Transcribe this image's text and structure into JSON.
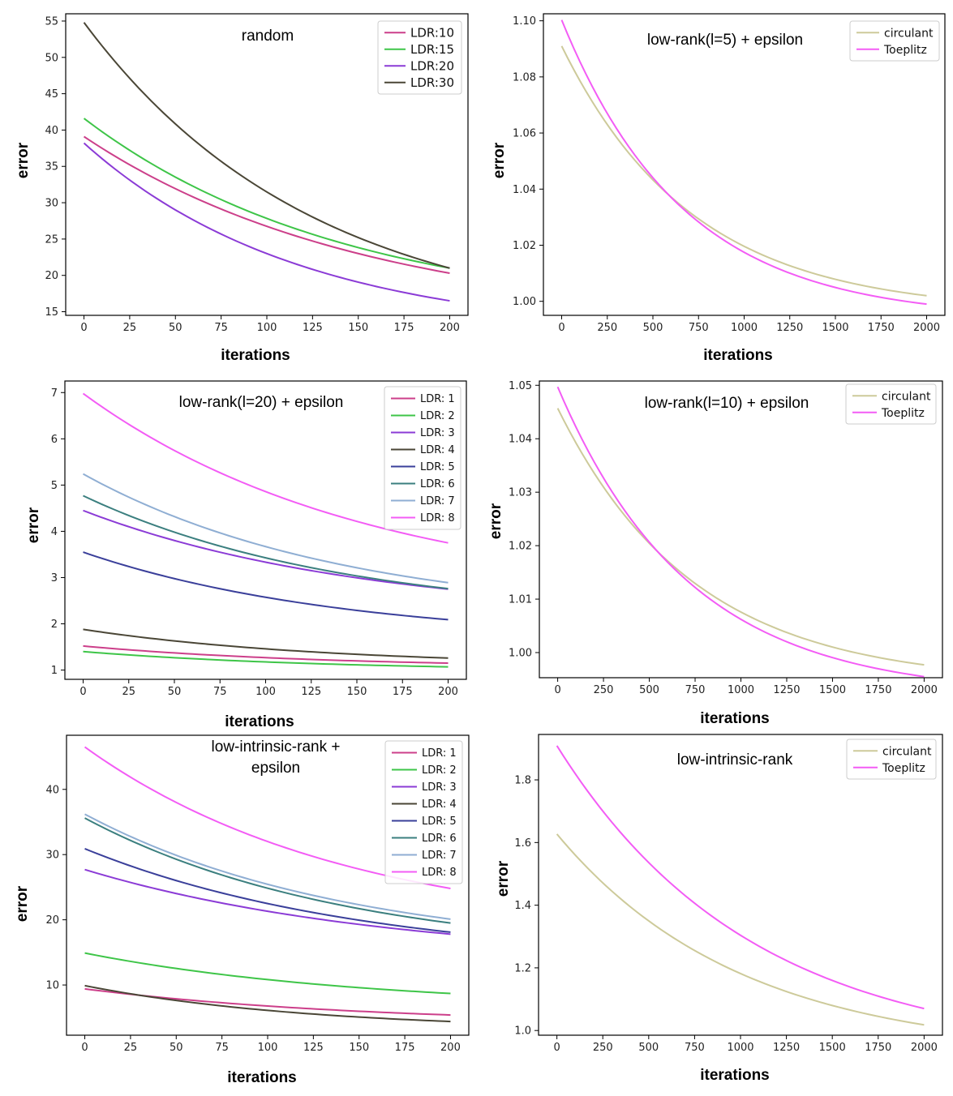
{
  "chart_data": [
    {
      "type": "line",
      "title": "random",
      "xlabel": "iterations",
      "ylabel": "error",
      "xlim": [
        -10,
        210
      ],
      "ylim": [
        14.5,
        56
      ],
      "xticks": [
        0,
        25,
        50,
        75,
        100,
        125,
        150,
        175,
        200
      ],
      "yticks": [
        15,
        20,
        25,
        30,
        35,
        40,
        45,
        50,
        55
      ],
      "legend_position": "top-right",
      "series": [
        {
          "name": "LDR:10",
          "color": "#cc3f8a",
          "start": 39.1,
          "end": 20.3,
          "curve": 1.3
        },
        {
          "name": "LDR:15",
          "color": "#3ec548",
          "start": 41.6,
          "end": 21.0,
          "curve": 1.4
        },
        {
          "name": "LDR:20",
          "color": "#8b3bd6",
          "start": 38.2,
          "end": 16.5,
          "curve": 1.7
        },
        {
          "name": "LDR:30",
          "color": "#4a4636",
          "start": 54.8,
          "end": 21.0,
          "curve": 1.6
        }
      ]
    },
    {
      "type": "line",
      "title": "low-rank(l=5) + epsilon",
      "xlabel": "iterations",
      "ylabel": "error",
      "xlim": [
        -100,
        2100
      ],
      "ylim": [
        0.995,
        1.1025
      ],
      "xticks": [
        0,
        250,
        500,
        750,
        1000,
        1250,
        1500,
        1750,
        2000
      ],
      "yticks": [
        1.0,
        1.02,
        1.04,
        1.06,
        1.08,
        1.1
      ],
      "legend_position": "top-right",
      "series": [
        {
          "name": "circulant",
          "color": "#cdca9a",
          "start": 1.091,
          "end": 1.002,
          "curve": 2.8
        },
        {
          "name": "Toeplitz",
          "color": "#f35cf5",
          "start": 1.1003,
          "end": 0.999,
          "curve": 3.0
        }
      ]
    },
    {
      "type": "line",
      "title": "low-rank(l=20) + epsilon",
      "xlabel": "iterations",
      "ylabel": "error",
      "xlim": [
        -10,
        210
      ],
      "ylim": [
        0.8,
        7.25
      ],
      "xticks": [
        0,
        25,
        50,
        75,
        100,
        125,
        150,
        175,
        200
      ],
      "yticks": [
        1,
        2,
        3,
        4,
        5,
        6,
        7
      ],
      "legend_position": "top-right",
      "series": [
        {
          "name": "LDR: 1",
          "color": "#cc3f8a",
          "start": 1.52,
          "end": 1.15,
          "curve": 1.5
        },
        {
          "name": "LDR: 2",
          "color": "#3ec548",
          "start": 1.4,
          "end": 1.07,
          "curve": 1.5
        },
        {
          "name": "LDR: 3",
          "color": "#8b3bd6",
          "start": 4.45,
          "end": 2.75,
          "curve": 1.3
        },
        {
          "name": "LDR: 4",
          "color": "#4a4636",
          "start": 1.88,
          "end": 1.26,
          "curve": 1.5
        },
        {
          "name": "LDR: 5",
          "color": "#3a3f9a",
          "start": 3.55,
          "end": 2.09,
          "curve": 1.4
        },
        {
          "name": "LDR: 6",
          "color": "#3b7f7f",
          "start": 4.77,
          "end": 2.76,
          "curve": 1.4
        },
        {
          "name": "LDR: 7",
          "color": "#8faed3",
          "start": 5.24,
          "end": 2.89,
          "curve": 1.4
        },
        {
          "name": "LDR: 8",
          "color": "#f35cf5",
          "start": 6.98,
          "end": 3.75,
          "curve": 1.3
        }
      ]
    },
    {
      "type": "line",
      "title": "low-rank(l=10) + epsilon",
      "xlabel": "iterations",
      "ylabel": "error",
      "xlim": [
        -100,
        2100
      ],
      "ylim": [
        0.9953,
        1.0508
      ],
      "xticks": [
        0,
        250,
        500,
        750,
        1000,
        1250,
        1500,
        1750,
        2000
      ],
      "yticks": [
        1.0,
        1.01,
        1.02,
        1.03,
        1.04,
        1.05
      ],
      "legend_position": "top-right",
      "series": [
        {
          "name": "circulant",
          "color": "#cdca9a",
          "start": 1.0457,
          "end": 0.9977,
          "curve": 2.7
        },
        {
          "name": "Toeplitz",
          "color": "#f35cf5",
          "start": 1.0497,
          "end": 0.9955,
          "curve": 2.8
        }
      ]
    },
    {
      "type": "line",
      "title": "low-intrinsic-rank + epsilon",
      "xlabel": "iterations",
      "ylabel": "error",
      "xlim": [
        -10,
        210
      ],
      "ylim": [
        2.3,
        48.3
      ],
      "xticks": [
        0,
        25,
        50,
        75,
        100,
        125,
        150,
        175,
        200
      ],
      "yticks": [
        10,
        20,
        30,
        40
      ],
      "legend_position": "top-right",
      "series": [
        {
          "name": "LDR: 1",
          "color": "#cc3f8a",
          "start": 9.4,
          "end": 5.4,
          "curve": 1.3
        },
        {
          "name": "LDR: 2",
          "color": "#3ec548",
          "start": 14.9,
          "end": 8.7,
          "curve": 1.3
        },
        {
          "name": "LDR: 3",
          "color": "#8b3bd6",
          "start": 27.7,
          "end": 17.8,
          "curve": 1.2
        },
        {
          "name": "LDR: 4",
          "color": "#4a4636",
          "start": 9.9,
          "end": 4.4,
          "curve": 1.6
        },
        {
          "name": "LDR: 5",
          "color": "#3a3f9a",
          "start": 30.9,
          "end": 18.1,
          "curve": 1.3
        },
        {
          "name": "LDR: 6",
          "color": "#3b7f7f",
          "start": 35.6,
          "end": 19.5,
          "curve": 1.4
        },
        {
          "name": "LDR: 7",
          "color": "#8faed3",
          "start": 36.2,
          "end": 20.1,
          "curve": 1.4
        },
        {
          "name": "LDR: 8",
          "color": "#f35cf5",
          "start": 46.5,
          "end": 24.8,
          "curve": 1.4
        }
      ]
    },
    {
      "type": "line",
      "title": "low-intrinsic-rank",
      "xlabel": "iterations",
      "ylabel": "error",
      "xlim": [
        -100,
        2100
      ],
      "ylim": [
        0.985,
        1.945
      ],
      "xticks": [
        0,
        250,
        500,
        750,
        1000,
        1250,
        1500,
        1750,
        2000
      ],
      "yticks": [
        1.0,
        1.2,
        1.4,
        1.6,
        1.8
      ],
      "legend_position": "top-right",
      "series": [
        {
          "name": "circulant",
          "color": "#cdca9a",
          "start": 1.627,
          "end": 1.018,
          "curve": 2.0
        },
        {
          "name": "Toeplitz",
          "color": "#f35cf5",
          "start": 1.909,
          "end": 1.07,
          "curve": 1.9
        }
      ]
    }
  ]
}
